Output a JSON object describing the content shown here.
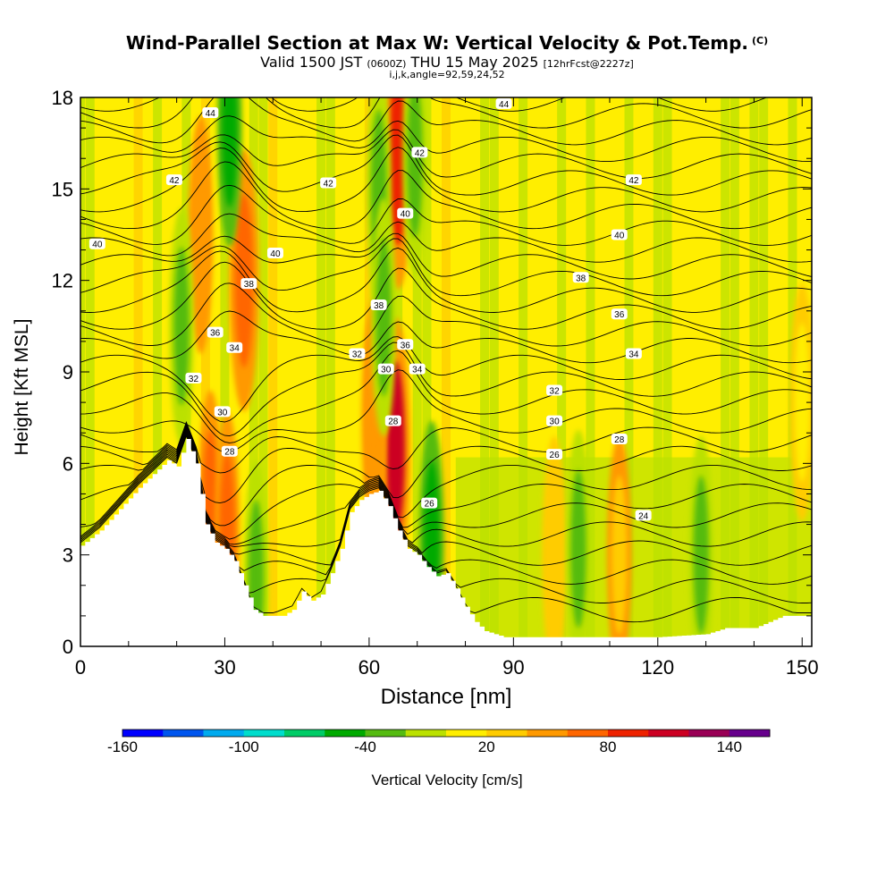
{
  "title": "Wind-Parallel Section at Max W: Vertical Velocity & Pot.Temp.",
  "copyright": "(C)",
  "subtitle": {
    "valid_prefix": "Valid 1500 JST",
    "utc": "(0600Z)",
    "valid_suffix": "THU 15 May 2025",
    "forecast": "[12hrFcst@2227z]"
  },
  "grid_info": "i,j,k,angle=92,59,24,52",
  "chart_data": {
    "type": "heatmap",
    "title": "Wind-Parallel Section at Max W: Vertical Velocity & Pot.Temp.",
    "xlabel": "Distance [nm]",
    "ylabel": "Height [Kft MSL]",
    "xlim": [
      0,
      152
    ],
    "ylim": [
      0,
      18
    ],
    "x_ticks": [
      0,
      30,
      60,
      90,
      120,
      150
    ],
    "y_ticks": [
      0,
      3,
      6,
      9,
      12,
      15,
      18
    ],
    "colorbar": {
      "label": "Vertical Velocity [cm/s]",
      "tick_labels": [
        "-160",
        "-100",
        "-40",
        "20",
        "80",
        "140"
      ],
      "tick_values": [
        -160,
        -100,
        -40,
        20,
        80,
        140
      ],
      "boundaries": [
        -160,
        -140,
        -120,
        -100,
        -80,
        -60,
        -40,
        -20,
        0,
        20,
        40,
        60,
        80,
        100,
        120,
        140,
        160
      ],
      "colors": [
        "#0000ff",
        "#0055ee",
        "#00aaee",
        "#00ddcc",
        "#00cc66",
        "#00aa00",
        "#55bb11",
        "#bbe100",
        "#ffee00",
        "#ffcc00",
        "#ff9900",
        "#ff6600",
        "#ee2200",
        "#cc0022",
        "#990055",
        "#66008c"
      ]
    },
    "terrain": {
      "x": [
        0,
        4,
        8,
        12,
        16,
        18,
        20,
        22,
        24,
        26,
        28,
        30,
        32,
        34,
        36,
        38,
        40,
        42,
        44,
        46,
        48,
        50,
        52,
        54,
        56,
        58,
        60,
        62,
        64,
        66,
        68,
        70,
        72,
        74,
        76,
        78,
        80,
        82,
        84,
        88,
        92,
        100,
        110,
        120,
        130,
        134,
        140,
        146,
        152
      ],
      "height_kft": [
        3.3,
        3.8,
        4.5,
        5.2,
        5.8,
        6.1,
        5.9,
        6.8,
        6.0,
        4.0,
        3.4,
        3.2,
        2.8,
        2.0,
        1.2,
        1.0,
        1.0,
        1.0,
        1.2,
        1.8,
        1.5,
        1.7,
        2.4,
        3.2,
        4.4,
        4.8,
        5.0,
        5.1,
        4.6,
        3.8,
        3.2,
        3.0,
        2.6,
        2.3,
        2.4,
        1.9,
        1.3,
        0.8,
        0.5,
        0.3,
        0.3,
        0.3,
        0.3,
        0.3,
        0.4,
        0.6,
        0.6,
        1.0,
        1.0
      ]
    },
    "vertical_velocity_features": [
      {
        "x": 34,
        "y": 12,
        "w_cm_s": 70
      },
      {
        "x": 31,
        "y": 17,
        "w_cm_s": -45
      },
      {
        "x": 25,
        "y": 13.5,
        "w_cm_s": 45
      },
      {
        "x": 21,
        "y": 10.5,
        "w_cm_s": -30
      },
      {
        "x": 27,
        "y": 4.5,
        "w_cm_s": 60
      },
      {
        "x": 30.5,
        "y": 3.8,
        "w_cm_s": 60
      },
      {
        "x": 36.5,
        "y": 2.2,
        "w_cm_s": -35
      },
      {
        "x": 66,
        "y": 16,
        "w_cm_s": 95
      },
      {
        "x": 69.5,
        "y": 16,
        "w_cm_s": -40
      },
      {
        "x": 62,
        "y": 15,
        "w_cm_s": -30
      },
      {
        "x": 65.5,
        "y": 6.5,
        "w_cm_s": 100
      },
      {
        "x": 61,
        "y": 7.5,
        "w_cm_s": 50
      },
      {
        "x": 73,
        "y": 3.5,
        "w_cm_s": -60
      },
      {
        "x": 63,
        "y": 10.8,
        "w_cm_s": -30
      },
      {
        "x": 98.5,
        "y": 3,
        "w_cm_s": 30
      },
      {
        "x": 112,
        "y": 3,
        "w_cm_s": 35
      },
      {
        "x": 103.5,
        "y": 3.2,
        "w_cm_s": -30
      },
      {
        "x": 129,
        "y": 3,
        "w_cm_s": -30
      },
      {
        "x": 150,
        "y": 8,
        "w_cm_s": 15
      }
    ],
    "theta_labels": [
      {
        "x": 27,
        "y": 17.5,
        "text": "44"
      },
      {
        "x": 88,
        "y": 17.8,
        "text": "44"
      },
      {
        "x": 70.5,
        "y": 16.2,
        "text": "42"
      },
      {
        "x": 19.5,
        "y": 15.3,
        "text": "42"
      },
      {
        "x": 51.5,
        "y": 15.2,
        "text": "42"
      },
      {
        "x": 115,
        "y": 15.3,
        "text": "42"
      },
      {
        "x": 3.5,
        "y": 13.2,
        "text": "40"
      },
      {
        "x": 67.5,
        "y": 14.2,
        "text": "40"
      },
      {
        "x": 40.5,
        "y": 12.9,
        "text": "40"
      },
      {
        "x": 112,
        "y": 13.5,
        "text": "40"
      },
      {
        "x": 35,
        "y": 11.9,
        "text": "38"
      },
      {
        "x": 104,
        "y": 12.1,
        "text": "38"
      },
      {
        "x": 62,
        "y": 11.2,
        "text": "38"
      },
      {
        "x": 28,
        "y": 10.3,
        "text": "36"
      },
      {
        "x": 112,
        "y": 10.9,
        "text": "36"
      },
      {
        "x": 67.5,
        "y": 9.9,
        "text": "36"
      },
      {
        "x": 32,
        "y": 9.8,
        "text": "34"
      },
      {
        "x": 57.5,
        "y": 9.6,
        "text": "32"
      },
      {
        "x": 115,
        "y": 9.6,
        "text": "34"
      },
      {
        "x": 70,
        "y": 9.1,
        "text": "34"
      },
      {
        "x": 23.5,
        "y": 8.8,
        "text": "32"
      },
      {
        "x": 63.5,
        "y": 9.1,
        "text": "30"
      },
      {
        "x": 98.5,
        "y": 8.4,
        "text": "32"
      },
      {
        "x": 29.5,
        "y": 7.7,
        "text": "30"
      },
      {
        "x": 65,
        "y": 7.4,
        "text": "28"
      },
      {
        "x": 98.5,
        "y": 7.4,
        "text": "30"
      },
      {
        "x": 112,
        "y": 6.8,
        "text": "28"
      },
      {
        "x": 31,
        "y": 6.4,
        "text": "28"
      },
      {
        "x": 98.5,
        "y": 6.3,
        "text": "26"
      },
      {
        "x": 72.5,
        "y": 4.7,
        "text": "26"
      },
      {
        "x": 117,
        "y": 4.3,
        "text": "24"
      }
    ]
  }
}
